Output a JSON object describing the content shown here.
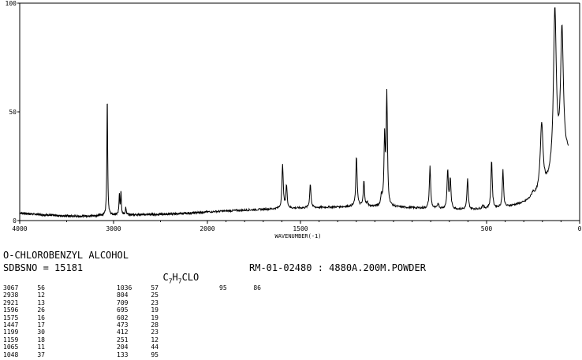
{
  "chart_data": {
    "type": "line",
    "xlabel": "WAVENUMBER(-1)",
    "xlim": [
      4000,
      0
    ],
    "ylim": [
      0,
      100
    ],
    "x_ticks": [
      "4000",
      "3000",
      "2000",
      "1500",
      "500",
      "0"
    ],
    "x_tick_values": [
      4000,
      3000,
      2000,
      1500,
      500,
      0
    ],
    "y_ticks": [
      "100",
      "50",
      "0"
    ],
    "y_tick_values": [
      100,
      50,
      0
    ],
    "series": [
      {
        "peaks": [
          {
            "x": 3067,
            "y": 56
          },
          {
            "x": 2938,
            "y": 12
          },
          {
            "x": 2921,
            "y": 13
          },
          {
            "x": 2870,
            "y": 6
          },
          {
            "x": 1596,
            "y": 26
          },
          {
            "x": 1575,
            "y": 16
          },
          {
            "x": 1447,
            "y": 17
          },
          {
            "x": 1290,
            "y": 6
          },
          {
            "x": 1199,
            "y": 30
          },
          {
            "x": 1159,
            "y": 18
          },
          {
            "x": 1140,
            "y": 8
          },
          {
            "x": 1065,
            "y": 11
          },
          {
            "x": 1048,
            "y": 37
          },
          {
            "x": 1036,
            "y": 57
          },
          {
            "x": 1000,
            "y": 5
          },
          {
            "x": 804,
            "y": 25
          },
          {
            "x": 760,
            "y": 8
          },
          {
            "x": 709,
            "y": 23
          },
          {
            "x": 695,
            "y": 19
          },
          {
            "x": 602,
            "y": 19
          },
          {
            "x": 520,
            "y": 7
          },
          {
            "x": 473,
            "y": 28
          },
          {
            "x": 412,
            "y": 23
          },
          {
            "x": 300,
            "y": 5
          },
          {
            "x": 251,
            "y": 12
          },
          {
            "x": 204,
            "y": 44
          },
          {
            "x": 133,
            "y": 95
          },
          {
            "x": 95,
            "y": 86
          }
        ],
        "baseline": [
          {
            "x": 4000,
            "y": 3.5
          },
          {
            "x": 3800,
            "y": 2.8
          },
          {
            "x": 3600,
            "y": 2.3
          },
          {
            "x": 3400,
            "y": 2.0
          },
          {
            "x": 3200,
            "y": 2.2
          },
          {
            "x": 3000,
            "y": 2.5
          },
          {
            "x": 2800,
            "y": 2.7
          },
          {
            "x": 2600,
            "y": 2.8
          },
          {
            "x": 2400,
            "y": 3.0
          },
          {
            "x": 2200,
            "y": 3.4
          },
          {
            "x": 2000,
            "y": 4.0
          },
          {
            "x": 1800,
            "y": 4.8
          },
          {
            "x": 1600,
            "y": 5.5
          },
          {
            "x": 1400,
            "y": 6.0
          },
          {
            "x": 1200,
            "y": 6.5
          },
          {
            "x": 1000,
            "y": 6.2
          },
          {
            "x": 800,
            "y": 5.5
          },
          {
            "x": 600,
            "y": 5.0
          },
          {
            "x": 400,
            "y": 6.0
          },
          {
            "x": 300,
            "y": 8.0
          },
          {
            "x": 200,
            "y": 12.0
          },
          {
            "x": 100,
            "y": 25.0
          },
          {
            "x": 60,
            "y": 30.0
          }
        ]
      }
    ]
  },
  "info": {
    "compound": "O-CHLOROBENZYL ALCOHOL",
    "sdbs_no": "SDBSNO = 15181",
    "formula_parts": [
      "C",
      "7",
      "H",
      "7",
      "CLO"
    ],
    "sample": "RM-01-02480 : 4880A.200M.POWDER"
  },
  "peak_table": {
    "col1": [
      [
        "3067",
        "56"
      ],
      [
        "2938",
        "12"
      ],
      [
        "2921",
        "13"
      ],
      [
        "1596",
        "26"
      ],
      [
        "1575",
        "16"
      ],
      [
        "1447",
        "17"
      ],
      [
        "1199",
        "30"
      ],
      [
        "1159",
        "18"
      ],
      [
        "1065",
        "11"
      ],
      [
        "1048",
        "37"
      ]
    ],
    "col2": [
      [
        "1036",
        "57"
      ],
      [
        "804",
        "25"
      ],
      [
        "709",
        "23"
      ],
      [
        "695",
        "19"
      ],
      [
        "602",
        "19"
      ],
      [
        "473",
        "28"
      ],
      [
        "412",
        "23"
      ],
      [
        "251",
        "12"
      ],
      [
        "204",
        "44"
      ],
      [
        "133",
        "95"
      ]
    ],
    "col3": [
      [
        "95",
        "86"
      ]
    ]
  }
}
